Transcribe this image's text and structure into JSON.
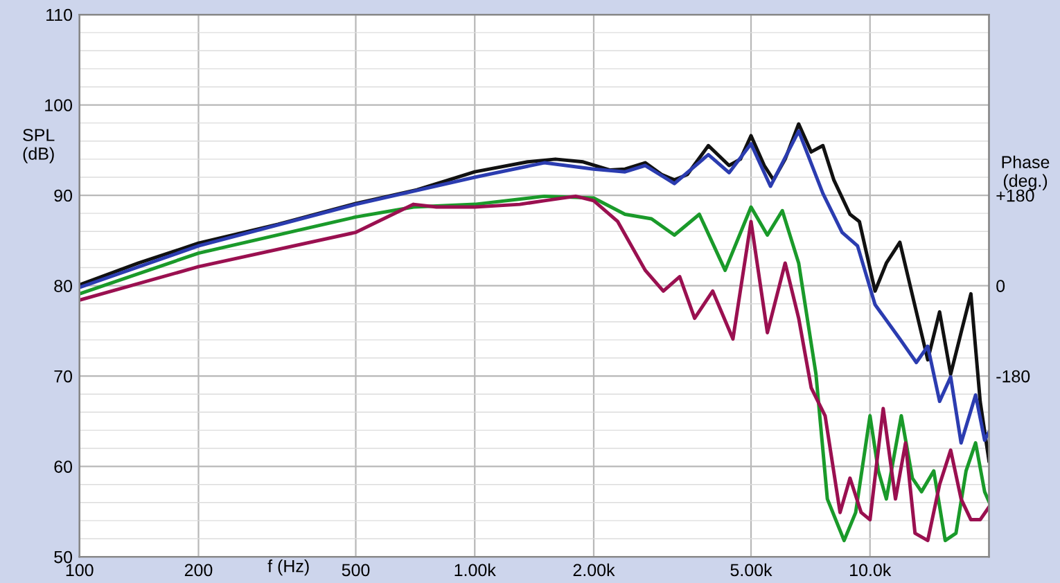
{
  "chart_data": {
    "type": "line",
    "xlabel": "f (Hz)",
    "ylabel": "SPL\n(dB)",
    "y2label": "Phase\n(deg.)",
    "log": "x",
    "grid": true,
    "marker": "none",
    "line_style": "solid",
    "xlim": [
      100,
      20000
    ],
    "xticks": [
      100,
      200,
      500,
      {
        "value": 1000,
        "label": "1.00k"
      },
      {
        "value": 2000,
        "label": "2.00k"
      },
      {
        "value": 5000,
        "label": "5.00k"
      },
      {
        "value": 10000,
        "label": "10.0k"
      }
    ],
    "ylim": [
      50,
      110
    ],
    "yticks": [
      50,
      60,
      70,
      80,
      90,
      100,
      110
    ],
    "y2lim": [
      -540,
      540
    ],
    "y2ticks": [
      {
        "value": 180,
        "label": "+180"
      },
      0,
      {
        "value": -180,
        "label": "-180"
      }
    ],
    "series": [
      {
        "color": "#111111",
        "x": [
          100,
          141,
          200,
          318,
          500,
          714,
          1000,
          1360,
          1600,
          1880,
          2200,
          2400,
          2700,
          2970,
          3200,
          3450,
          3900,
          4400,
          4700,
          5000,
          5400,
          5700,
          6100,
          6600,
          7100,
          7600,
          8100,
          8900,
          9400,
          10300,
          11000,
          11900,
          13100,
          14000,
          15000,
          16000,
          17000,
          18000,
          19000,
          20000
        ],
        "values": [
          80.1,
          82.5,
          84.7,
          86.8,
          89.1,
          90.6,
          92.6,
          93.7,
          94.0,
          93.7,
          92.8,
          92.9,
          93.6,
          92.3,
          91.7,
          92.3,
          95.5,
          93.3,
          94.0,
          96.6,
          93.3,
          91.7,
          94.0,
          97.9,
          94.8,
          95.5,
          91.7,
          87.9,
          87.1,
          79.4,
          82.5,
          84.8,
          77.1,
          71.8,
          77.1,
          70.2,
          74.8,
          79.1,
          67.2,
          60.6
        ]
      },
      {
        "color": "#2b3cb0",
        "x": [
          100,
          200,
          500,
          1000,
          1500,
          2000,
          2400,
          2700,
          3200,
          3900,
          4400,
          5000,
          5600,
          6600,
          7600,
          8500,
          9300,
          10300,
          11900,
          13100,
          14000,
          15000,
          16000,
          17000,
          18500,
          19500,
          20000
        ],
        "values": [
          79.8,
          84.4,
          89.0,
          92.0,
          93.6,
          92.9,
          92.6,
          93.3,
          91.3,
          94.5,
          92.5,
          95.7,
          91.0,
          97.1,
          90.2,
          85.9,
          84.4,
          77.9,
          74.1,
          71.5,
          73.3,
          67.2,
          69.9,
          62.6,
          67.9,
          62.9,
          63.8
        ]
      },
      {
        "color": "#1a9a2a",
        "x": [
          100,
          200,
          500,
          700,
          1000,
          1500,
          2000,
          2400,
          2800,
          3200,
          3700,
          4300,
          5000,
          5500,
          6000,
          6600,
          7300,
          7800,
          8600,
          9200,
          10000,
          10500,
          11000,
          12000,
          12800,
          13500,
          14500,
          15500,
          16500,
          17500,
          18500,
          19500,
          20000
        ],
        "values": [
          79.1,
          83.6,
          87.6,
          88.7,
          89.0,
          89.9,
          89.7,
          87.9,
          87.4,
          85.6,
          87.9,
          81.7,
          88.7,
          85.6,
          88.3,
          82.5,
          70.2,
          56.4,
          51.8,
          54.9,
          65.6,
          59.5,
          56.4,
          65.6,
          58.7,
          57.2,
          59.5,
          51.8,
          52.6,
          59.5,
          62.6,
          57.2,
          56.1
        ]
      },
      {
        "color": "#9a1050",
        "x": [
          100,
          200,
          500,
          700,
          800,
          1000,
          1300,
          1500,
          1800,
          2000,
          2300,
          2700,
          3000,
          3300,
          3600,
          4000,
          4500,
          5000,
          5500,
          6100,
          6600,
          7100,
          7700,
          8400,
          8900,
          9500,
          10000,
          10800,
          11600,
          12300,
          13000,
          14000,
          15000,
          16000,
          17000,
          18000,
          19000,
          20000
        ],
        "values": [
          78.4,
          82.1,
          85.9,
          89.0,
          88.7,
          88.7,
          89.0,
          89.4,
          89.9,
          89.4,
          87.1,
          81.7,
          79.4,
          81.0,
          76.4,
          79.4,
          74.1,
          87.1,
          74.8,
          82.5,
          76.4,
          68.7,
          65.6,
          54.9,
          58.7,
          54.9,
          54.1,
          66.4,
          56.4,
          62.6,
          52.6,
          51.8,
          58.0,
          61.8,
          56.4,
          54.1,
          54.1,
          55.5
        ]
      }
    ]
  }
}
